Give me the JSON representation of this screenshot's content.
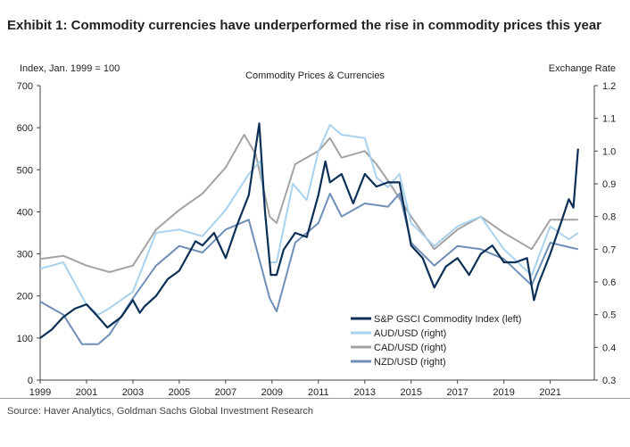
{
  "exhibit_title": "Exhibit 1: Commodity currencies have underperformed the rise in commodity prices this year",
  "source": "Source: Haver Analytics, Goldman Sachs Global Investment Research",
  "chart_data": {
    "type": "line",
    "title": "Commodity Prices & Currencies",
    "ylabel": "Index, Jan. 1999 = 100",
    "y2label": "Exchange Rate",
    "xlim": [
      1999,
      2022.9
    ],
    "ylim": [
      0,
      700
    ],
    "y2lim": [
      0.3,
      1.2
    ],
    "xticks": [
      "1999",
      "2001",
      "2003",
      "2005",
      "2007",
      "2009",
      "2011",
      "2013",
      "2015",
      "2017",
      "2019",
      "2021"
    ],
    "yticks": [
      "0",
      "100",
      "200",
      "300",
      "400",
      "500",
      "600",
      "700"
    ],
    "y2ticks": [
      "0.3",
      "0.4",
      "0.5",
      "0.6",
      "0.7",
      "0.8",
      "0.9",
      "1.0",
      "1.1",
      "1.2"
    ],
    "grid": false,
    "legend_placement": "bottom-right",
    "series": [
      {
        "name": "S&P GSCI Commodity Index (left)",
        "axis": "left",
        "color": "#0b2f55",
        "x": [
          1999,
          1999.5,
          2000,
          2000.5,
          2001,
          2001.5,
          2001.9,
          2002.5,
          2003,
          2003.3,
          2003.5,
          2004,
          2004.5,
          2005,
          2005.7,
          2006,
          2006.5,
          2007,
          2007.5,
          2008,
          2008.45,
          2008.7,
          2008.95,
          2009.2,
          2009.5,
          2010,
          2010.5,
          2011,
          2011.3,
          2011.5,
          2012,
          2012.5,
          2013,
          2013.5,
          2014,
          2014.5,
          2015,
          2015.5,
          2016,
          2016.5,
          2017,
          2017.5,
          2018,
          2018.5,
          2019,
          2019.5,
          2020,
          2020.3,
          2020.5,
          2021,
          2021.5,
          2021.8,
          2022,
          2022.2
        ],
        "values": [
          100,
          120,
          150,
          170,
          180,
          150,
          125,
          150,
          190,
          160,
          175,
          200,
          240,
          260,
          330,
          320,
          350,
          290,
          370,
          440,
          610,
          400,
          250,
          250,
          310,
          350,
          340,
          440,
          520,
          470,
          490,
          420,
          490,
          460,
          470,
          470,
          320,
          290,
          220,
          270,
          290,
          250,
          300,
          320,
          280,
          280,
          290,
          190,
          230,
          300,
          380,
          430,
          410,
          550
        ]
      },
      {
        "name": "AUD/USD (right)",
        "axis": "right",
        "color": "#a9d2ee",
        "x": [
          1999,
          2000,
          2001,
          2001.5,
          2002,
          2003,
          2004,
          2005,
          2006,
          2007,
          2008,
          2008.5,
          2008.9,
          2009.2,
          2009.9,
          2010.5,
          2011,
          2011.5,
          2012,
          2013,
          2013.5,
          2014,
          2014.5,
          2015,
          2016,
          2017,
          2018,
          2019,
          2020.2,
          2021,
          2021.8,
          2022.2
        ],
        "values": [
          0.64,
          0.66,
          0.53,
          0.5,
          0.52,
          0.57,
          0.75,
          0.76,
          0.74,
          0.82,
          0.93,
          0.97,
          0.66,
          0.66,
          0.9,
          0.85,
          1.0,
          1.08,
          1.05,
          1.04,
          0.92,
          0.89,
          0.93,
          0.78,
          0.71,
          0.77,
          0.8,
          0.7,
          0.62,
          0.77,
          0.73,
          0.75
        ]
      },
      {
        "name": "CAD/USD (right)",
        "axis": "right",
        "color": "#a3a3a3",
        "x": [
          1999,
          2000,
          2001,
          2002,
          2003,
          2004,
          2005,
          2006,
          2007,
          2007.8,
          2008.3,
          2008.9,
          2009.2,
          2010,
          2011,
          2011.5,
          2012,
          2013,
          2013.5,
          2014,
          2015,
          2016,
          2017,
          2018,
          2019,
          2020.2,
          2021,
          2022.2
        ],
        "values": [
          0.67,
          0.68,
          0.65,
          0.63,
          0.65,
          0.76,
          0.82,
          0.87,
          0.95,
          1.05,
          0.99,
          0.8,
          0.78,
          0.96,
          1.0,
          1.04,
          0.98,
          1.0,
          0.96,
          0.91,
          0.8,
          0.7,
          0.76,
          0.8,
          0.75,
          0.7,
          0.79,
          0.79
        ]
      },
      {
        "name": "NZD/USD (right)",
        "axis": "right",
        "color": "#6f8fb8",
        "x": [
          1999,
          2000,
          2000.8,
          2001.5,
          2002,
          2003,
          2004,
          2005,
          2006,
          2007,
          2008,
          2008.9,
          2009.2,
          2010,
          2011,
          2011.5,
          2012,
          2013,
          2014,
          2014.5,
          2015,
          2016,
          2017,
          2018,
          2019,
          2020.2,
          2021,
          2022.2
        ],
        "values": [
          0.54,
          0.5,
          0.41,
          0.41,
          0.44,
          0.55,
          0.65,
          0.71,
          0.69,
          0.76,
          0.79,
          0.55,
          0.51,
          0.72,
          0.78,
          0.87,
          0.8,
          0.84,
          0.83,
          0.87,
          0.72,
          0.65,
          0.71,
          0.7,
          0.67,
          0.59,
          0.72,
          0.7
        ]
      }
    ]
  }
}
